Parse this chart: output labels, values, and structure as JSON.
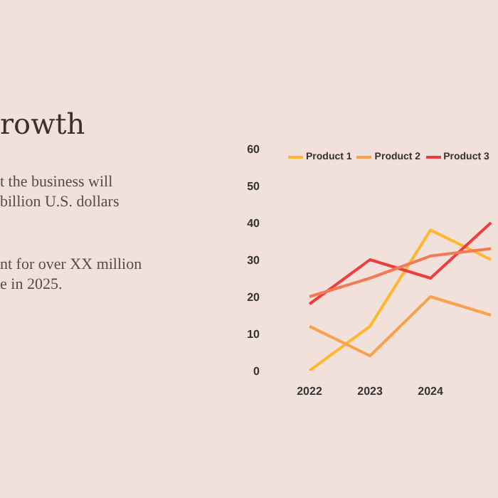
{
  "chart_data": {
    "type": "line",
    "title": "rowth",
    "annotations": [
      "t the business will\nbillion U.S. dollars",
      "nt for over XX million\ne in 2025."
    ],
    "categories": [
      "2022",
      "2023",
      "2024",
      null
    ],
    "series": [
      {
        "name": "Product 1",
        "color": "#ffb72e",
        "values": [
          0,
          12,
          38,
          30
        ]
      },
      {
        "name": "Product 2",
        "color": "#f8a24e",
        "values": [
          12,
          4,
          20,
          15
        ]
      },
      {
        "name": "Product 3",
        "color": "#f03c3c",
        "values": [
          18,
          30,
          25,
          40
        ]
      },
      {
        "color": "#f27a55",
        "values": [
          20,
          25,
          31,
          33
        ]
      }
    ],
    "ylim": [
      0,
      60
    ],
    "yticks": [
      0,
      10,
      20,
      30,
      40,
      50,
      60
    ],
    "grid": false,
    "legend": "top",
    "marker": "none",
    "line_style": "solid"
  }
}
